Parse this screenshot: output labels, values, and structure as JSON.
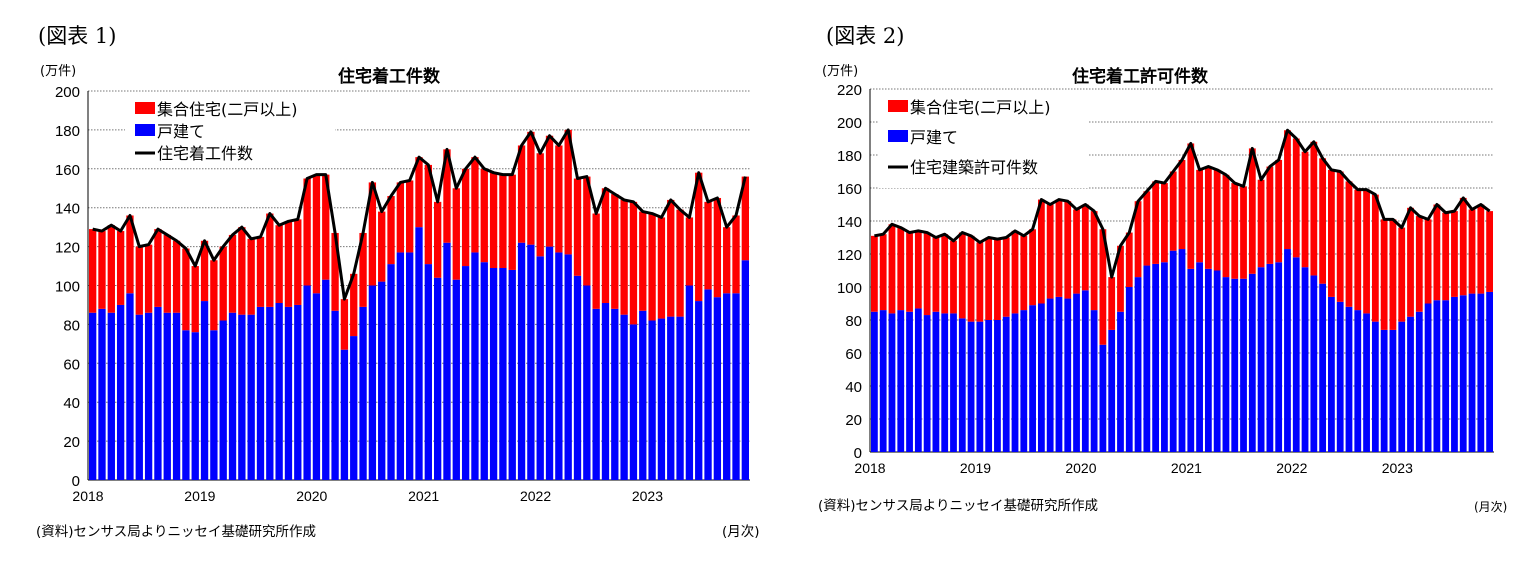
{
  "colors": {
    "apartment": "#ff0000",
    "single": "#0000ff",
    "line": "#000000"
  },
  "chart_data": [
    {
      "type": "bar",
      "stacked": true,
      "figure_label": "(図表 1)",
      "title": "住宅着工件数",
      "unit": "(万件)",
      "xlabel": "(月次)",
      "source": "(資料)センサス局よりニッセイ基礎研究所作成",
      "ylim": [
        0,
        200
      ],
      "yticks": [
        0,
        20,
        40,
        60,
        80,
        100,
        120,
        140,
        160,
        180,
        200
      ],
      "xticks": [
        "2018",
        "2019",
        "2020",
        "2021",
        "2022",
        "2023"
      ],
      "grid": true,
      "legend": "top-left",
      "legend_items": [
        "集合住宅(二戸以上)",
        "戸建て",
        "住宅着工件数"
      ],
      "x_start": "2018-01",
      "x_end": "2023-11",
      "single": [
        86,
        88,
        86,
        90,
        96,
        85,
        86,
        89,
        86,
        86,
        77,
        76,
        92,
        77,
        82,
        86,
        85,
        85,
        89,
        89,
        91,
        89,
        90,
        100,
        96,
        103,
        87,
        67,
        74,
        89,
        100,
        102,
        111,
        117,
        117,
        130,
        111,
        104,
        122,
        103,
        110,
        117,
        112,
        109,
        109,
        108,
        122,
        121,
        115,
        120,
        117,
        116,
        105,
        100,
        88,
        91,
        88,
        85,
        80,
        87,
        82,
        83,
        84,
        84,
        100,
        92,
        98,
        94,
        96,
        96,
        113
      ],
      "total": [
        129,
        128,
        131,
        128,
        136,
        120,
        121,
        129,
        126,
        123,
        119,
        110,
        123,
        113,
        120,
        126,
        130,
        124,
        125,
        137,
        131,
        133,
        134,
        155,
        157,
        157,
        127,
        93,
        106,
        127,
        153,
        138,
        146,
        153,
        154,
        166,
        162,
        143,
        170,
        150,
        160,
        166,
        160,
        158,
        157,
        157,
        172,
        179,
        168,
        177,
        172,
        180,
        155,
        156,
        137,
        150,
        147,
        144,
        143,
        138,
        137,
        135,
        144,
        139,
        135,
        158,
        143,
        145,
        130,
        136,
        156
      ]
    },
    {
      "type": "bar",
      "stacked": true,
      "figure_label": "(図表 2)",
      "title": "住宅着工許可件数",
      "unit": "(万件)",
      "xlabel": "(月次)",
      "source": "(資料)センサス局よりニッセイ基礎研究所作成",
      "ylim": [
        0,
        220
      ],
      "yticks": [
        0,
        20,
        40,
        60,
        80,
        100,
        120,
        140,
        160,
        180,
        200,
        220
      ],
      "xticks": [
        "2018",
        "2019",
        "2020",
        "2021",
        "2022",
        "2023"
      ],
      "grid": true,
      "legend": "top-left",
      "legend_items": [
        "集合住宅(二戸以上)",
        "戸建て",
        "住宅建築許可件数"
      ],
      "x_start": "2018-01",
      "x_end": "2023-11",
      "single": [
        85,
        86,
        84,
        86,
        85,
        87,
        83,
        85,
        84,
        84,
        81,
        79,
        79,
        80,
        80,
        82,
        84,
        86,
        89,
        90,
        93,
        94,
        93,
        96,
        98,
        86,
        65,
        74,
        85,
        100,
        106,
        113,
        114,
        115,
        122,
        123,
        111,
        115,
        111,
        110,
        106,
        105,
        105,
        108,
        112,
        114,
        115,
        123,
        118,
        112,
        107,
        102,
        94,
        91,
        88,
        86,
        84,
        79,
        74,
        74,
        79,
        82,
        85,
        90,
        92,
        92,
        94,
        95,
        96,
        96,
        97
      ],
      "total": [
        131,
        132,
        138,
        136,
        133,
        134,
        133,
        130,
        132,
        128,
        133,
        131,
        127,
        130,
        129,
        130,
        134,
        131,
        135,
        153,
        150,
        153,
        152,
        147,
        150,
        146,
        135,
        106,
        125,
        133,
        152,
        158,
        164,
        163,
        170,
        177,
        187,
        171,
        173,
        171,
        168,
        163,
        161,
        184,
        165,
        173,
        177,
        195,
        190,
        182,
        188,
        178,
        171,
        170,
        164,
        159,
        159,
        156,
        141,
        141,
        136,
        148,
        143,
        141,
        150,
        145,
        146,
        154,
        147,
        150,
        146
      ]
    }
  ]
}
